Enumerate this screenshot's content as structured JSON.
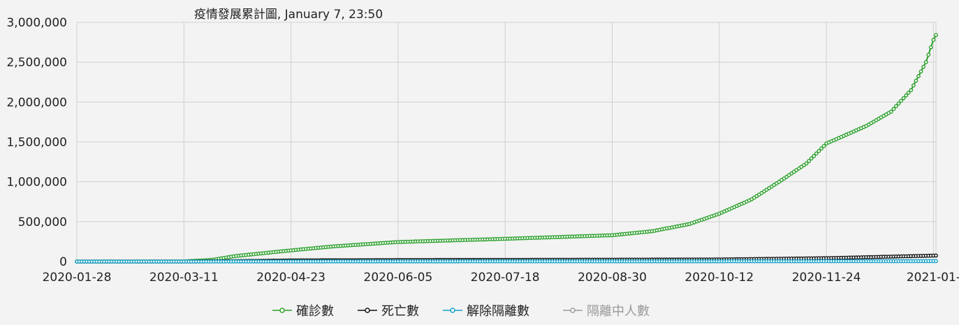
{
  "chart_data": {
    "type": "line",
    "title": "疫情發展累計圖, January 7, 23:50",
    "x_tick_labels": [
      "2020-01-28",
      "2020-03-11",
      "2020-04-23",
      "2020-06-05",
      "2020-07-18",
      "2020-08-30",
      "2020-10-12",
      "2020-11-24",
      "2021-01-"
    ],
    "y_tick_labels": [
      "0",
      "500,000",
      "1,000,000",
      "1,500,000",
      "2,000,000",
      "2,500,000",
      "3,000,000"
    ],
    "ylim": [
      0,
      3000000
    ],
    "x_range": [
      "2020-01-28",
      "2021-01-07"
    ],
    "grid": true,
    "legend_position": "bottom",
    "series": [
      {
        "name": "確診數",
        "color": "#2ca02c",
        "points": [
          [
            "2020-01-28",
            0
          ],
          [
            "2020-03-11",
            2000
          ],
          [
            "2020-03-22",
            20000
          ],
          [
            "2020-04-01",
            70000
          ],
          [
            "2020-04-23",
            140000
          ],
          [
            "2020-05-10",
            190000
          ],
          [
            "2020-06-05",
            245000
          ],
          [
            "2020-07-18",
            285000
          ],
          [
            "2020-08-30",
            330000
          ],
          [
            "2020-09-15",
            380000
          ],
          [
            "2020-09-30",
            470000
          ],
          [
            "2020-10-12",
            600000
          ],
          [
            "2020-10-25",
            780000
          ],
          [
            "2020-11-05",
            1000000
          ],
          [
            "2020-11-16",
            1230000
          ],
          [
            "2020-11-24",
            1480000
          ],
          [
            "2020-12-10",
            1700000
          ],
          [
            "2020-12-20",
            1880000
          ],
          [
            "2020-12-28",
            2150000
          ],
          [
            "2021-01-03",
            2500000
          ],
          [
            "2021-01-06",
            2780000
          ],
          [
            "2021-01-07",
            2840000
          ]
        ]
      },
      {
        "name": "死亡數",
        "color": "#111111",
        "points": [
          [
            "2020-01-28",
            0
          ],
          [
            "2020-03-11",
            100
          ],
          [
            "2020-04-01",
            5000
          ],
          [
            "2020-04-23",
            14000
          ],
          [
            "2020-06-05",
            19000
          ],
          [
            "2020-07-18",
            21000
          ],
          [
            "2020-08-30",
            23000
          ],
          [
            "2020-10-12",
            26000
          ],
          [
            "2020-11-24",
            42000
          ],
          [
            "2021-01-07",
            75000
          ]
        ]
      },
      {
        "name": "解除隔離數",
        "color": "#17a2c8",
        "points": [
          [
            "2020-01-28",
            0
          ],
          [
            "2020-03-11",
            0
          ],
          [
            "2020-06-05",
            2000
          ],
          [
            "2020-10-12",
            3000
          ],
          [
            "2021-01-07",
            5000
          ]
        ]
      },
      {
        "name": "隔離中人數",
        "color": "#999999",
        "hidden": true,
        "points": []
      }
    ]
  }
}
